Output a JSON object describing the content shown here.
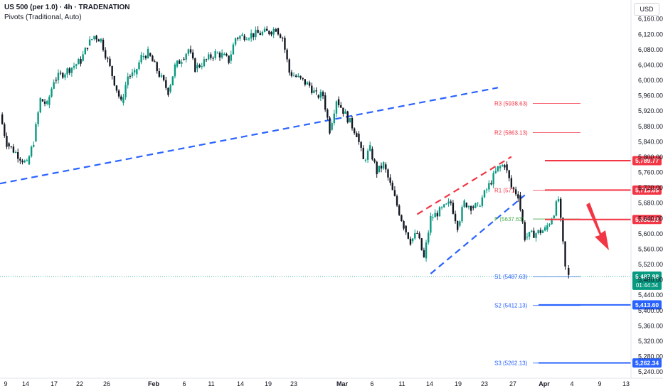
{
  "header": {
    "symbol": "US 500 (per 1.0) · 4h · TRADENATION",
    "indicator": "Pivots (Traditional, Auto)",
    "currency": "USD"
  },
  "chart_data": {
    "type": "candlestick",
    "currency": "USD",
    "y_range": [
      5230,
      6190
    ],
    "y_ticks": [
      6160,
      6120,
      6080,
      6040,
      6000,
      5960,
      5920,
      5880,
      5840,
      5800,
      5760,
      5720,
      5680,
      5640,
      5600,
      5560,
      5520,
      5480,
      5440,
      5400,
      5360,
      5320,
      5280,
      5240
    ],
    "y_tick_labels": [
      "6,160.00",
      "6,120.00",
      "6,080.00",
      "6,040.00",
      "6,000.00",
      "5,960.00",
      "5,920.00",
      "5,880.00",
      "5,840.00",
      "5,800.00",
      "5,760.00",
      "5,720.00",
      "5,680.00",
      "5,640.00",
      "5,600.00",
      "5,560.00",
      "5,520.00",
      "5,480.00",
      "5,440.00",
      "5,400.00",
      "5,360.00",
      "5,320.00",
      "5,280.00",
      "5,240.00"
    ],
    "x_labels": [
      "9",
      "14",
      "17",
      "22",
      "26",
      "Feb",
      "6",
      "11",
      "14",
      "19",
      "23",
      "Mar",
      "6",
      "11",
      "14",
      "19",
      "23",
      "27",
      "Apr",
      "4",
      "9",
      "13"
    ],
    "price_series": [
      [
        "2025-01-09",
        5910
      ],
      [
        "2025-01-10",
        5835
      ],
      [
        "2025-01-13",
        5780
      ],
      [
        "2025-01-14",
        5840
      ],
      [
        "2025-01-15",
        5950
      ],
      [
        "2025-01-16",
        5935
      ],
      [
        "2025-01-17",
        6000
      ],
      [
        "2025-01-21",
        6050
      ],
      [
        "2025-01-22",
        6090
      ],
      [
        "2025-01-23",
        6115
      ],
      [
        "2025-01-24",
        6105
      ],
      [
        "2025-01-27",
        5940
      ],
      [
        "2025-01-28",
        6010
      ],
      [
        "2025-01-29",
        6015
      ],
      [
        "2025-01-30",
        6060
      ],
      [
        "2025-01-31",
        6070
      ],
      [
        "2025-02-03",
        5970
      ],
      [
        "2025-02-04",
        6035
      ],
      [
        "2025-02-05",
        6055
      ],
      [
        "2025-02-06",
        6080
      ],
      [
        "2025-02-07",
        6030
      ],
      [
        "2025-02-10",
        6070
      ],
      [
        "2025-02-11",
        6065
      ],
      [
        "2025-02-12",
        6050
      ],
      [
        "2025-02-13",
        6110
      ],
      [
        "2025-02-14",
        6115
      ],
      [
        "2025-02-18",
        6125
      ],
      [
        "2025-02-19",
        6135
      ],
      [
        "2025-02-20",
        6110
      ],
      [
        "2025-02-21",
        6020
      ],
      [
        "2025-02-24",
        5985
      ],
      [
        "2025-02-25",
        5960
      ],
      [
        "2025-02-26",
        5960
      ],
      [
        "2025-02-27",
        5870
      ],
      [
        "2025-02-28",
        5950
      ],
      [
        "2025-03-03",
        5860
      ],
      [
        "2025-03-04",
        5790
      ],
      [
        "2025-03-05",
        5820
      ],
      [
        "2025-03-06",
        5760
      ],
      [
        "2025-03-07",
        5780
      ],
      [
        "2025-03-10",
        5620
      ],
      [
        "2025-03-11",
        5580
      ],
      [
        "2025-03-12",
        5600
      ],
      [
        "2025-03-13",
        5535
      ],
      [
        "2025-03-14",
        5640
      ],
      [
        "2025-03-17",
        5680
      ],
      [
        "2025-03-18",
        5620
      ],
      [
        "2025-03-19",
        5680
      ],
      [
        "2025-03-20",
        5670
      ],
      [
        "2025-03-21",
        5670
      ],
      [
        "2025-03-24",
        5770
      ],
      [
        "2025-03-25",
        5780
      ],
      [
        "2025-03-26",
        5720
      ],
      [
        "2025-03-27",
        5700
      ],
      [
        "2025-03-28",
        5590
      ],
      [
        "2025-03-31",
        5610
      ],
      [
        "2025-04-01",
        5640
      ],
      [
        "2025-04-02",
        5690
      ],
      [
        "2025-04-03",
        5510
      ],
      [
        "2025-04-03 12:00",
        5487.88
      ]
    ],
    "pivots": [
      {
        "name": "R3",
        "value": 5938.63,
        "label": "R3 (5938.63)"
      },
      {
        "name": "R2",
        "value": 5863.13,
        "label": "R2 (5863.13)"
      },
      {
        "name": "R1",
        "value": 5713.05,
        "label": "R1 (571"
      },
      {
        "name": "P",
        "value": 5637.63,
        "label": "P (5637.63)"
      },
      {
        "name": "S1",
        "value": 5487.63,
        "label": "S1 (5487.63)"
      },
      {
        "name": "S2",
        "value": 5412.13,
        "label": "S2 (5412.13)"
      },
      {
        "name": "S3",
        "value": 5262.13,
        "label": "S3 (5262.13)"
      }
    ],
    "resistance_levels": [
      {
        "value": 5789.77,
        "label": "5,789.77"
      },
      {
        "value": 5713.05,
        "label": "5,713.05"
      },
      {
        "value": 5636.33,
        "label": "5,636.33"
      }
    ],
    "support_levels": [
      {
        "value": 5413.6,
        "label": "5,413.60"
      },
      {
        "value": 5262.34,
        "label": "5,262.34"
      }
    ],
    "trendlines": [
      {
        "color": "#2962ff",
        "style": "dashed",
        "from": [
          "2025-01-09",
          5730
        ],
        "to": [
          "2025-03-24",
          5980
        ]
      },
      {
        "color": "#2962ff",
        "style": "dashed",
        "from": [
          "2025-03-14",
          5495
        ],
        "to": [
          "2025-03-28",
          5700
        ]
      },
      {
        "color": "#f23645",
        "style": "dashed",
        "from": [
          "2025-03-12",
          5650
        ],
        "to": [
          "2025-03-26",
          5800
        ]
      }
    ],
    "last_price": {
      "value": 5487.88,
      "label": "5,487.88",
      "countdown": "01:44:34"
    },
    "colors": {
      "up": "#089981",
      "down": "#131722",
      "red": "#f23645",
      "blue": "#2962ff",
      "pivot_red": "#f23645",
      "pivot_green": "#4caf50",
      "pivot_blue": "#2962ff"
    }
  }
}
